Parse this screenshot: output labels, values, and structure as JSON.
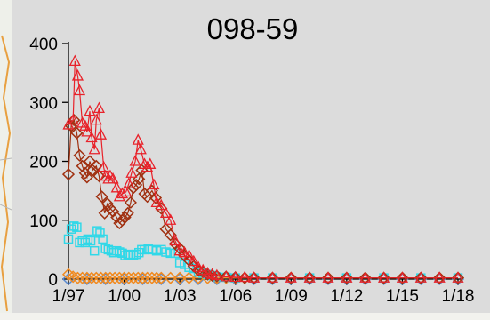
{
  "chart_data": {
    "type": "line",
    "title": "098-59",
    "xlabel": "",
    "ylabel": "",
    "x_ticks": [
      "1/97",
      "1/00",
      "1/03",
      "1/06",
      "1/09",
      "1/12",
      "1/15",
      "1/18"
    ],
    "y_ticks": [
      "0",
      "100",
      "200",
      "300",
      "400"
    ],
    "xlim": [
      1997.0,
      2018.0
    ],
    "ylim": [
      0,
      400
    ],
    "grid": false,
    "legend": "none",
    "colors": {
      "background": "#dcdcdc",
      "series_red": "#e8222a",
      "series_brown": "#a03010",
      "series_cyan": "#30d8e8",
      "series_orange": "#f08a20",
      "series_blue": "#5a8ad0"
    },
    "series": [
      {
        "marker": "triangle",
        "line": true,
        "color": "#e8222a",
        "x": [
          1997.0,
          1997.25,
          1997.35,
          1997.5,
          1997.6,
          1997.75,
          1997.9,
          1998.0,
          1998.15,
          1998.25,
          1998.4,
          1998.5,
          1998.65,
          1998.75,
          1998.9,
          1999.0,
          1999.15,
          1999.25,
          1999.4,
          1999.6,
          1999.75,
          1999.9,
          2000.1,
          2000.25,
          2000.4,
          2000.6,
          2000.75,
          2000.9,
          2001.1,
          2001.25,
          2001.4,
          2001.6,
          2001.75,
          2002.0,
          2002.25,
          2002.5,
          2002.75,
          2003.0,
          2003.25,
          2003.5,
          2003.75,
          2004.0,
          2004.25,
          2004.5,
          2004.75,
          2005.0,
          2005.5,
          2006.0,
          2006.5,
          2007.0,
          2008.0,
          2009.0,
          2010.0,
          2011.0,
          2012.0,
          2013.0,
          2014.0,
          2015.0,
          2016.0,
          2017.0,
          2018.0
        ],
        "values": [
          262,
          270,
          370,
          345,
          320,
          265,
          260,
          250,
          285,
          240,
          220,
          270,
          290,
          245,
          190,
          175,
          170,
          175,
          170,
          155,
          140,
          145,
          148,
          162,
          180,
          200,
          236,
          220,
          195,
          190,
          195,
          160,
          130,
          125,
          112,
          100,
          65,
          48,
          45,
          40,
          30,
          20,
          15,
          10,
          8,
          6,
          4,
          3,
          3,
          2,
          2,
          2,
          2,
          2,
          2,
          2,
          2,
          2,
          2,
          2,
          2
        ]
      },
      {
        "marker": "diamond",
        "line": true,
        "color": "#a03010",
        "x": [
          1997.0,
          1997.15,
          1997.3,
          1997.45,
          1997.6,
          1997.75,
          1997.9,
          1998.0,
          1998.15,
          1998.3,
          1998.5,
          1998.65,
          1998.8,
          1998.95,
          1999.1,
          1999.25,
          1999.4,
          1999.6,
          1999.75,
          1999.9,
          2000.05,
          2000.2,
          2000.35,
          2000.5,
          2000.65,
          2000.8,
          2000.95,
          2001.1,
          2001.25,
          2001.5,
          2001.7,
          2002.0,
          2002.25,
          2002.5,
          2002.75,
          2003.0,
          2003.25,
          2003.5,
          2003.75,
          2004.0,
          2004.25,
          2004.5,
          2004.75,
          2005.0,
          2005.5,
          2006.0,
          2006.5,
          2007.0,
          2008.0,
          2009.0,
          2010.0,
          2011.0,
          2012.0,
          2013.0,
          2014.0,
          2015.0,
          2016.0,
          2017.0,
          2018.0
        ],
        "values": [
          178,
          260,
          270,
          248,
          210,
          192,
          180,
          173,
          200,
          185,
          192,
          175,
          140,
          112,
          128,
          120,
          115,
          105,
          95,
          100,
          105,
          112,
          130,
          155,
          160,
          170,
          185,
          145,
          140,
          150,
          138,
          120,
          85,
          75,
          60,
          52,
          40,
          32,
          22,
          15,
          12,
          8,
          6,
          5,
          4,
          3,
          2,
          2,
          2,
          2,
          2,
          2,
          2,
          2,
          2,
          2,
          2,
          2,
          2
        ]
      },
      {
        "marker": "square",
        "line": false,
        "color": "#30d8e8",
        "x": [
          1997.0,
          1997.15,
          1997.3,
          1997.45,
          1997.6,
          1997.75,
          1997.9,
          1998.05,
          1998.2,
          1998.4,
          1998.55,
          1998.7,
          1998.85,
          1999.0,
          1999.15,
          1999.3,
          1999.45,
          1999.6,
          1999.75,
          1999.9,
          2000.05,
          2000.2,
          2000.35,
          2000.5,
          2000.65,
          2000.8,
          2000.95,
          2001.1,
          2001.3,
          2001.5,
          2001.75,
          2002.0,
          2002.25,
          2002.5,
          2002.75,
          2003.0,
          2003.25,
          2003.5,
          2003.75,
          2004.0,
          2004.25,
          2004.5,
          2004.75,
          2005.0,
          2005.5,
          2006.0,
          2007.0,
          2008.0,
          2010.0,
          2012.0,
          2014.0,
          2016.0,
          2018.0
        ],
        "values": [
          68,
          85,
          90,
          88,
          62,
          65,
          62,
          68,
          65,
          48,
          82,
          78,
          68,
          52,
          50,
          48,
          45,
          48,
          46,
          44,
          40,
          42,
          42,
          40,
          42,
          45,
          50,
          50,
          52,
          50,
          48,
          50,
          46,
          44,
          44,
          28,
          25,
          20,
          18,
          12,
          10,
          8,
          6,
          4,
          3,
          2,
          2,
          2,
          2,
          2,
          2,
          2,
          2
        ]
      },
      {
        "marker": "diamond",
        "line": true,
        "color": "#f08a20",
        "x": [
          1997.0,
          1997.25,
          1997.5,
          1997.75,
          1998.0,
          1998.25,
          1998.5,
          1998.75,
          1999.0,
          1999.25,
          1999.5,
          1999.75,
          2000.0,
          2000.25,
          2000.5,
          2000.75,
          2001.0,
          2001.25,
          2001.5,
          2001.75,
          2002.0,
          2002.5,
          2003.0,
          2003.5,
          2004.0,
          2004.5,
          2005.0,
          2005.5,
          2006.0,
          2006.5,
          2007.0,
          2008.0,
          2009.0,
          2010.0,
          2011.0,
          2012.0,
          2013.0,
          2014.0,
          2015.0,
          2016.0,
          2017.0,
          2018.0
        ],
        "values": [
          8,
          4,
          2,
          2,
          2,
          2,
          2,
          2,
          2,
          2,
          2,
          2,
          2,
          2,
          2,
          2,
          2,
          2,
          2,
          2,
          2,
          2,
          2,
          2,
          2,
          2,
          2,
          2,
          2,
          2,
          2,
          2,
          2,
          2,
          2,
          2,
          2,
          2,
          2,
          2,
          2,
          2
        ]
      },
      {
        "marker": "diamond",
        "line": false,
        "color": "#5a8ad0",
        "x": [
          1997.0,
          1998.0,
          1999.0,
          2000.0,
          2001.0,
          2002.0,
          2003.0,
          2004.0,
          2005.0,
          2006.0,
          2007.0,
          2008.0,
          2009.0,
          2010.0,
          2011.0,
          2012.0,
          2013.0,
          2014.0,
          2015.0,
          2016.0,
          2017.0,
          2018.0
        ],
        "values": [
          0,
          0,
          0,
          0,
          0,
          0,
          0,
          0,
          0,
          0,
          0,
          0,
          0,
          0,
          0,
          0,
          0,
          0,
          0,
          0,
          0,
          0
        ]
      }
    ]
  }
}
